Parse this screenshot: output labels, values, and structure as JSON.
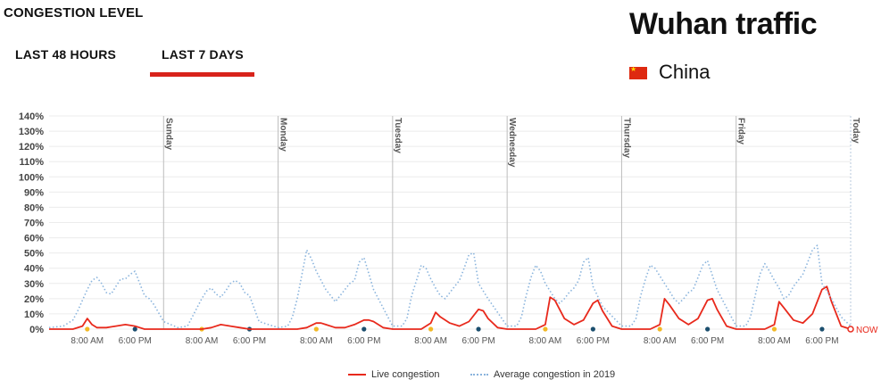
{
  "header": {
    "section_title": "CONGESTION LEVEL",
    "tabs": [
      {
        "label": "LAST 48 HOURS",
        "active": false
      },
      {
        "label": "LAST 7 DAYS",
        "active": true
      }
    ],
    "city_title": "Wuhan traffic",
    "country": "China",
    "accent_color": "#d8231b"
  },
  "legend": {
    "live": "Live congestion",
    "average": "Average congestion in 2019"
  },
  "chart_data": {
    "type": "line",
    "title": "",
    "xlabel": "",
    "ylabel": "",
    "ylim": [
      0,
      140
    ],
    "y_ticks": [
      "0%",
      "10%",
      "20%",
      "30%",
      "40%",
      "50%",
      "60%",
      "70%",
      "80%",
      "90%",
      "100%",
      "110%",
      "120%",
      "130%",
      "140%"
    ],
    "days": [
      "Sunday",
      "Monday",
      "Tuesday",
      "Wednesday",
      "Thursday",
      "Friday",
      "Today"
    ],
    "x_tick_labels": [
      "8:00 AM",
      "6:00 PM"
    ],
    "now_label": "NOW",
    "x_unit": "hours since start of displayed window (Saturday 00:00)",
    "x_range": [
      0,
      168
    ],
    "series": [
      {
        "name": "Live congestion",
        "color": "#e8291c",
        "style": "solid",
        "x": [
          0,
          5,
          7,
          8,
          9,
          10,
          12,
          14,
          16,
          18,
          19,
          20,
          22,
          24,
          26,
          28,
          30,
          32,
          34,
          36,
          38,
          40,
          42,
          43,
          44,
          46,
          48,
          50,
          52,
          54,
          56,
          57,
          58,
          60,
          62,
          64,
          66,
          67,
          68,
          70,
          72,
          74,
          76,
          78,
          80,
          81,
          82,
          84,
          86,
          88,
          90,
          91,
          92,
          94,
          96,
          98,
          100,
          102,
          104,
          105,
          106,
          108,
          110,
          112,
          114,
          115,
          116,
          118,
          120,
          122,
          124,
          126,
          128,
          129,
          130,
          132,
          134,
          136,
          138,
          139,
          140,
          142,
          144,
          146,
          148,
          150,
          152,
          153,
          154,
          156,
          158,
          160,
          162,
          163,
          164,
          166,
          168
        ],
        "values": [
          0,
          0,
          2,
          7,
          3,
          1,
          1,
          2,
          3,
          2,
          1,
          0,
          0,
          0,
          0,
          0,
          0,
          0,
          1,
          3,
          2,
          1,
          0,
          0,
          0,
          0,
          0,
          0,
          0,
          1,
          4,
          4,
          3,
          1,
          1,
          3,
          6,
          6,
          5,
          1,
          0,
          0,
          0,
          0,
          4,
          11,
          8,
          4,
          2,
          5,
          13,
          12,
          7,
          1,
          0,
          0,
          0,
          0,
          3,
          21,
          19,
          7,
          3,
          6,
          17,
          19,
          12,
          2,
          0,
          0,
          0,
          0,
          3,
          20,
          16,
          7,
          3,
          7,
          19,
          20,
          13,
          2,
          0,
          0,
          0,
          0,
          3,
          18,
          14,
          6,
          4,
          10,
          26,
          28,
          18,
          2,
          0
        ]
      },
      {
        "name": "Average congestion in 2019",
        "color": "#8ab4dd",
        "style": "dotted",
        "x": [
          0,
          3,
          5,
          6,
          7,
          8,
          9,
          10,
          11,
          12,
          13,
          14,
          15,
          16,
          17,
          18,
          19,
          20,
          21,
          22,
          24,
          27,
          29,
          30,
          31,
          32,
          33,
          34,
          35,
          36,
          37,
          38,
          39,
          40,
          41,
          42,
          44,
          48,
          50,
          51,
          52,
          53,
          54,
          55,
          56,
          57,
          58,
          59,
          60,
          61,
          62,
          63,
          64,
          65,
          66,
          68,
          72,
          74,
          75,
          76,
          77,
          78,
          79,
          80,
          81,
          82,
          83,
          84,
          85,
          86,
          87,
          88,
          89,
          90,
          92,
          96,
          98,
          99,
          100,
          101,
          102,
          103,
          104,
          105,
          106,
          107,
          108,
          109,
          110,
          111,
          112,
          113,
          114,
          116,
          120,
          122,
          123,
          124,
          125,
          126,
          127,
          128,
          129,
          130,
          131,
          132,
          133,
          134,
          135,
          136,
          137,
          138,
          140,
          144,
          146,
          147,
          148,
          149,
          150,
          151,
          152,
          153,
          154,
          155,
          156,
          157,
          158,
          159,
          160,
          161,
          162,
          164,
          166,
          168
        ],
        "values": [
          1,
          2,
          6,
          12,
          19,
          26,
          32,
          34,
          30,
          24,
          23,
          28,
          33,
          33,
          36,
          38,
          30,
          22,
          20,
          16,
          5,
          1,
          2,
          8,
          14,
          20,
          25,
          27,
          23,
          21,
          25,
          30,
          32,
          30,
          24,
          22,
          5,
          1,
          2,
          8,
          20,
          36,
          52,
          46,
          38,
          32,
          26,
          22,
          18,
          22,
          26,
          30,
          32,
          44,
          47,
          26,
          2,
          2,
          7,
          22,
          32,
          42,
          40,
          33,
          27,
          22,
          20,
          24,
          28,
          32,
          40,
          49,
          50,
          30,
          20,
          2,
          2,
          8,
          22,
          34,
          42,
          38,
          30,
          25,
          20,
          17,
          20,
          24,
          27,
          32,
          44,
          47,
          28,
          15,
          2,
          2,
          7,
          22,
          33,
          42,
          40,
          35,
          30,
          25,
          20,
          17,
          20,
          24,
          26,
          34,
          42,
          45,
          26,
          2,
          2,
          8,
          22,
          36,
          43,
          38,
          32,
          27,
          20,
          22,
          28,
          32,
          36,
          44,
          52,
          55,
          30,
          20,
          8,
          2
        ],
        "note_pattern": "daily average curve"
      }
    ],
    "day_boundaries_hours": [
      24,
      48,
      72,
      96,
      120,
      144,
      168
    ],
    "marker_colors": {
      "morning": "#f2b824",
      "evening": "#1b4e6e"
    },
    "grid": true,
    "legend_position": "bottom-center"
  }
}
